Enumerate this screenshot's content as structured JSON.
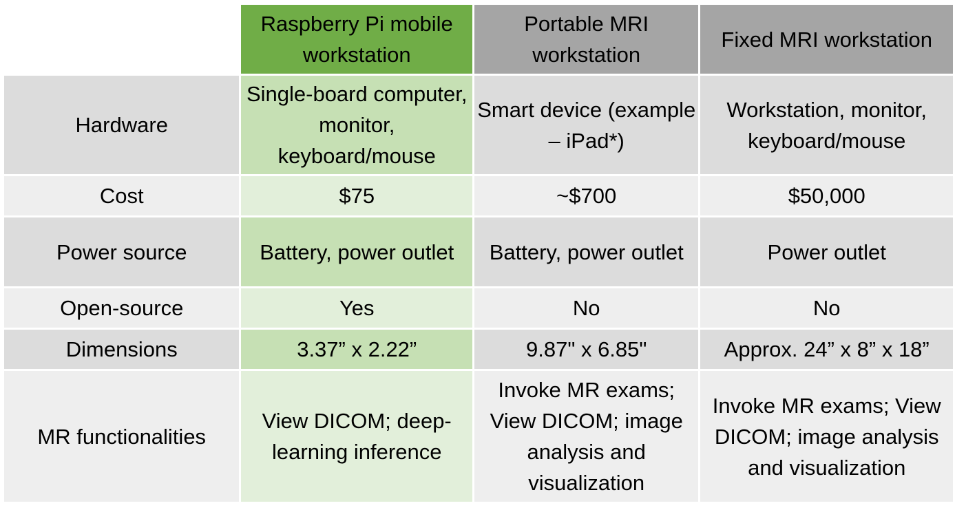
{
  "table": {
    "headers": [
      "",
      "Raspberry Pi mobile workstation",
      "Portable MRI workstation",
      "Fixed MRI workstation"
    ],
    "rows": [
      {
        "label": "Hardware",
        "values": [
          "Single-board computer, monitor, keyboard/mouse",
          "Smart device (example – iPad*)",
          "Workstation, monitor, keyboard/mouse"
        ]
      },
      {
        "label": "Cost",
        "values": [
          "$75",
          "~$700",
          "$50,000"
        ]
      },
      {
        "label": "Power source",
        "values": [
          "Battery, power outlet",
          "Battery, power outlet",
          "Power outlet"
        ]
      },
      {
        "label": "Open-source",
        "values": [
          "Yes",
          "No",
          "No"
        ]
      },
      {
        "label": "Dimensions",
        "values": [
          "3.37” x 2.22”",
          "9.87\" x 6.85\"",
          "Approx. 24” x 8” x 18”"
        ]
      },
      {
        "label": "MR functionalities",
        "values": [
          "View DICOM; deep-learning inference",
          "Invoke MR exams; View DICOM; image analysis and visualization",
          "Invoke MR exams; View DICOM; image analysis and visualization"
        ]
      }
    ]
  },
  "colors": {
    "pi_header": "#70ad47",
    "other_header": "#a5a5a5",
    "pi_dark": "#c6e0b4",
    "pi_light": "#e2efda",
    "row_dark": "#dcdcdc",
    "row_light": "#eeeeee"
  }
}
